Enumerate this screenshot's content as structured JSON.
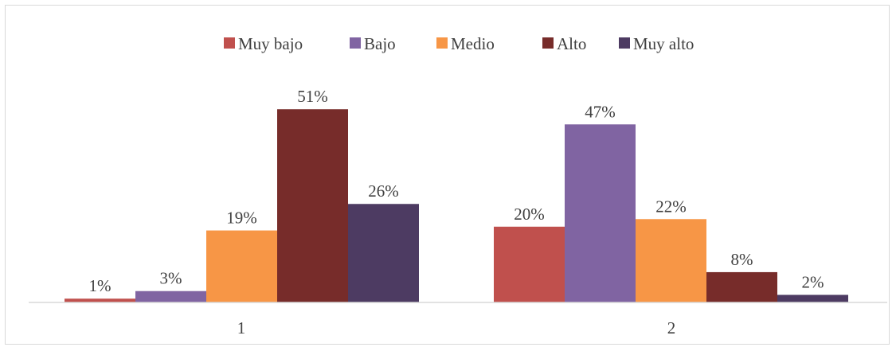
{
  "chart_data": {
    "type": "bar",
    "categories": [
      "1",
      "2"
    ],
    "series": [
      {
        "name": "Muy bajo",
        "color": "#c0504d",
        "values": [
          1,
          20
        ],
        "labels": [
          "1%",
          "20%"
        ]
      },
      {
        "name": "Bajo",
        "color": "#8064a2",
        "values": [
          3,
          47
        ],
        "labels": [
          "3%",
          "47%"
        ]
      },
      {
        "name": "Medio",
        "color": "#f79646",
        "values": [
          19,
          22
        ],
        "labels": [
          "19%",
          "22%"
        ]
      },
      {
        "name": "Alto",
        "color": "#772c2a",
        "values": [
          51,
          8
        ],
        "labels": [
          "51%",
          "8%"
        ]
      },
      {
        "name": "Muy alto",
        "color": "#4d3b62",
        "values": [
          26,
          2
        ],
        "labels": [
          "26%",
          "2%"
        ]
      }
    ],
    "title": "",
    "xlabel": "",
    "ylabel": "",
    "ylim": [
      0,
      52
    ],
    "grid": false,
    "legend_position": "top"
  }
}
